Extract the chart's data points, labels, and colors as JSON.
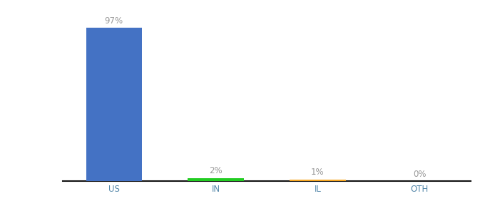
{
  "categories": [
    "US",
    "IN",
    "IL",
    "OTH"
  ],
  "values": [
    97,
    2,
    1,
    0
  ],
  "labels": [
    "97%",
    "2%",
    "1%",
    "0%"
  ],
  "bar_colors": [
    "#4472c4",
    "#22cc22",
    "#f5a623",
    "#aaaaaa"
  ],
  "background_color": "#ffffff",
  "ylim": [
    0,
    108
  ],
  "label_fontsize": 8.5,
  "tick_fontsize": 8.5,
  "label_color": "#999999",
  "tick_color": "#5588aa",
  "bar_width": 0.55
}
